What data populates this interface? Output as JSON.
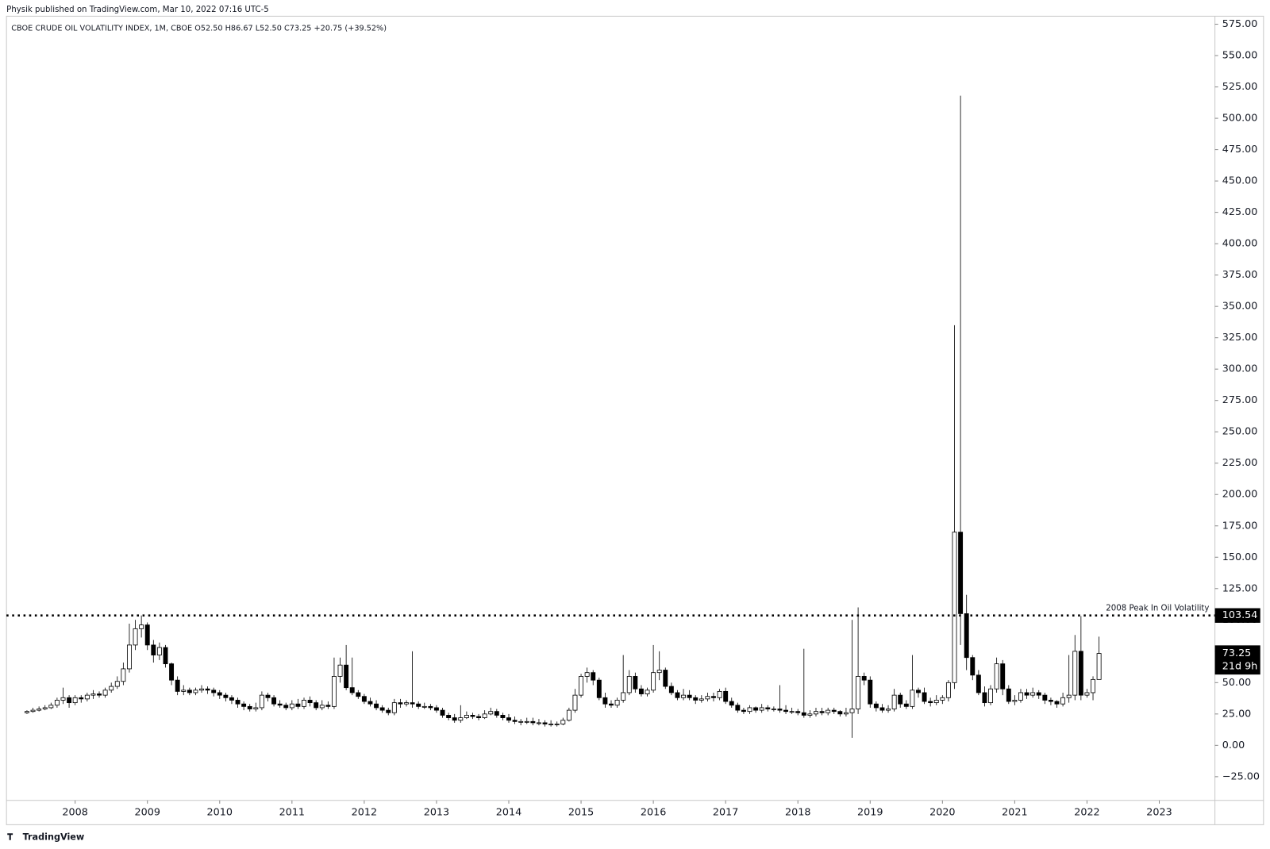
{
  "chart_data": {
    "type": "candlestick",
    "header": "Physik published on TradingView.com, Mar 10, 2022 07:16 UTC-5",
    "title": "CBOE CRUDE OIL VOLATILITY INDEX, 1M, CBOE  O52.50  H86.67  L52.50  C73.25  +20.75 (+39.52%)",
    "branding": "TradingView",
    "countdown": "21d 9h",
    "up_color": "#ffffff",
    "down_color": "#000000",
    "x": [
      "2007-05",
      "2007-06",
      "2007-07",
      "2007-08",
      "2007-09",
      "2007-10",
      "2007-11",
      "2007-12",
      "2008-01",
      "2008-02",
      "2008-03",
      "2008-04",
      "2008-05",
      "2008-06",
      "2008-07",
      "2008-08",
      "2008-09",
      "2008-10",
      "2008-11",
      "2008-12",
      "2009-01",
      "2009-02",
      "2009-03",
      "2009-04",
      "2009-05",
      "2009-06",
      "2009-07",
      "2009-08",
      "2009-09",
      "2009-10",
      "2009-11",
      "2009-12",
      "2010-01",
      "2010-02",
      "2010-03",
      "2010-04",
      "2010-05",
      "2010-06",
      "2010-07",
      "2010-08",
      "2010-09",
      "2010-10",
      "2010-11",
      "2010-12",
      "2011-01",
      "2011-02",
      "2011-03",
      "2011-04",
      "2011-05",
      "2011-06",
      "2011-07",
      "2011-08",
      "2011-09",
      "2011-10",
      "2011-11",
      "2011-12",
      "2012-01",
      "2012-02",
      "2012-03",
      "2012-04",
      "2012-05",
      "2012-06",
      "2012-07",
      "2012-08",
      "2012-09",
      "2012-10",
      "2012-11",
      "2012-12",
      "2013-01",
      "2013-02",
      "2013-03",
      "2013-04",
      "2013-05",
      "2013-06",
      "2013-07",
      "2013-08",
      "2013-09",
      "2013-10",
      "2013-11",
      "2013-12",
      "2014-01",
      "2014-02",
      "2014-03",
      "2014-04",
      "2014-05",
      "2014-06",
      "2014-07",
      "2014-08",
      "2014-09",
      "2014-10",
      "2014-11",
      "2014-12",
      "2015-01",
      "2015-02",
      "2015-03",
      "2015-04",
      "2015-05",
      "2015-06",
      "2015-07",
      "2015-08",
      "2015-09",
      "2015-10",
      "2015-11",
      "2015-12",
      "2016-01",
      "2016-02",
      "2016-03",
      "2016-04",
      "2016-05",
      "2016-06",
      "2016-07",
      "2016-08",
      "2016-09",
      "2016-10",
      "2016-11",
      "2016-12",
      "2017-01",
      "2017-02",
      "2017-03",
      "2017-04",
      "2017-05",
      "2017-06",
      "2017-07",
      "2017-08",
      "2017-09",
      "2017-10",
      "2017-11",
      "2017-12",
      "2018-01",
      "2018-02",
      "2018-03",
      "2018-04",
      "2018-05",
      "2018-06",
      "2018-07",
      "2018-08",
      "2018-09",
      "2018-10",
      "2018-11",
      "2018-12",
      "2019-01",
      "2019-02",
      "2019-03",
      "2019-04",
      "2019-05",
      "2019-06",
      "2019-07",
      "2019-08",
      "2019-09",
      "2019-10",
      "2019-11",
      "2019-12",
      "2020-01",
      "2020-02",
      "2020-03",
      "2020-04",
      "2020-05",
      "2020-06",
      "2020-07",
      "2020-08",
      "2020-09",
      "2020-10",
      "2020-11",
      "2020-12",
      "2021-01",
      "2021-02",
      "2021-03",
      "2021-04",
      "2021-05",
      "2021-06",
      "2021-07",
      "2021-08",
      "2021-09",
      "2021-10",
      "2021-11",
      "2021-12",
      "2022-01",
      "2022-02",
      "2022-03"
    ],
    "open": [
      26,
      27,
      28,
      29,
      30,
      32,
      36,
      38,
      34,
      38,
      37,
      40,
      41,
      40,
      44,
      47,
      51,
      61,
      80,
      93,
      96,
      80,
      72,
      78,
      65,
      52,
      43,
      44,
      42,
      44,
      45,
      44,
      42,
      40,
      38,
      36,
      33,
      31,
      29,
      30,
      40,
      38,
      33,
      32,
      30,
      33,
      31,
      36,
      34,
      30,
      32,
      31,
      55,
      64,
      46,
      42,
      39,
      35,
      33,
      30,
      28,
      26,
      34,
      33,
      34,
      33,
      31,
      31,
      30,
      28,
      24,
      22,
      20,
      22,
      24,
      23,
      22,
      25,
      27,
      24,
      22,
      20,
      19,
      19,
      19,
      18,
      18,
      17,
      17,
      17,
      20,
      28,
      40,
      55,
      58,
      52,
      38,
      33,
      32,
      36,
      42,
      55,
      45,
      41,
      44,
      58,
      60,
      47,
      42,
      38,
      40,
      38,
      36,
      37,
      39,
      38,
      43,
      35,
      32,
      28,
      27,
      30,
      28,
      30,
      29,
      29,
      28,
      27,
      27,
      26,
      24,
      25,
      27,
      26,
      28,
      27,
      25,
      26,
      29,
      55,
      52,
      33,
      30,
      28,
      29,
      40,
      33,
      31,
      44,
      42,
      35,
      34,
      36,
      38,
      50,
      170,
      105,
      70,
      56,
      42,
      34,
      45,
      65,
      45,
      35,
      36,
      42,
      40,
      42,
      40,
      36,
      35,
      33,
      38,
      40,
      75,
      40,
      42,
      52.5
    ],
    "high": [
      28,
      30,
      31,
      32,
      34,
      38,
      46,
      40,
      40,
      40,
      42,
      44,
      43,
      46,
      50,
      55,
      66,
      97,
      100,
      103.54,
      98,
      84,
      82,
      80,
      66,
      55,
      48,
      46,
      46,
      48,
      47,
      46,
      44,
      42,
      40,
      38,
      35,
      33,
      34,
      43,
      42,
      40,
      36,
      34,
      36,
      37,
      38,
      39,
      36,
      36,
      35,
      70,
      70,
      80,
      70,
      44,
      41,
      38,
      36,
      32,
      30,
      37,
      37,
      36,
      75,
      35,
      34,
      33,
      32,
      30,
      26,
      25,
      32,
      27,
      26,
      25,
      28,
      30,
      29,
      26,
      25,
      23,
      21,
      22,
      22,
      21,
      20,
      20,
      19,
      22,
      30,
      45,
      57,
      62,
      60,
      54,
      42,
      36,
      38,
      72,
      60,
      58,
      48,
      46,
      80,
      75,
      62,
      50,
      44,
      45,
      44,
      40,
      40,
      42,
      42,
      45,
      46,
      38,
      34,
      30,
      32,
      31,
      33,
      32,
      31,
      48,
      32,
      30,
      29,
      77,
      28,
      30,
      30,
      30,
      30,
      28,
      30,
      100,
      110,
      58,
      55,
      35,
      33,
      32,
      45,
      42,
      36,
      72,
      46,
      46,
      38,
      40,
      40,
      52,
      335,
      518,
      120,
      72,
      60,
      47,
      48,
      70,
      68,
      48,
      40,
      45,
      45,
      46,
      44,
      42,
      38,
      36,
      42,
      72,
      88,
      103,
      45,
      55,
      86.67
    ],
    "low": [
      25,
      26,
      27,
      28,
      29,
      30,
      33,
      30,
      32,
      34,
      35,
      37,
      38,
      38,
      42,
      45,
      48,
      58,
      76,
      86,
      76,
      66,
      68,
      62,
      48,
      40,
      40,
      40,
      40,
      42,
      41,
      39,
      37,
      35,
      33,
      30,
      28,
      27,
      27,
      28,
      35,
      31,
      30,
      28,
      28,
      29,
      29,
      31,
      28,
      28,
      29,
      29,
      50,
      44,
      40,
      37,
      33,
      31,
      28,
      26,
      24,
      24,
      30,
      31,
      30,
      29,
      29,
      28,
      26,
      22,
      20,
      18,
      18,
      21,
      21,
      20,
      21,
      24,
      22,
      20,
      18,
      17,
      16,
      17,
      16,
      16,
      15,
      15,
      15,
      16,
      19,
      26,
      38,
      50,
      48,
      36,
      30,
      30,
      30,
      34,
      40,
      42,
      39,
      39,
      42,
      52,
      45,
      40,
      36,
      36,
      36,
      33,
      34,
      35,
      35,
      36,
      33,
      30,
      26,
      25,
      25,
      26,
      26,
      27,
      27,
      26,
      25,
      25,
      24,
      22,
      22,
      23,
      24,
      24,
      25,
      23,
      23,
      6,
      25,
      48,
      30,
      27,
      26,
      26,
      27,
      30,
      29,
      29,
      38,
      33,
      31,
      32,
      33,
      35,
      45,
      80,
      60,
      52,
      40,
      31,
      32,
      42,
      40,
      33,
      32,
      34,
      37,
      38,
      37,
      33,
      32,
      30,
      31,
      34,
      36,
      36,
      38,
      36,
      52.5
    ],
    "close": [
      27,
      28,
      29,
      30,
      32,
      36,
      38,
      34,
      38,
      37,
      40,
      41,
      40,
      44,
      47,
      51,
      61,
      80,
      93,
      96,
      80,
      72,
      78,
      65,
      52,
      43,
      44,
      42,
      44,
      45,
      44,
      42,
      40,
      38,
      36,
      33,
      31,
      29,
      30,
      40,
      38,
      33,
      32,
      30,
      33,
      31,
      36,
      34,
      30,
      32,
      31,
      55,
      64,
      46,
      42,
      39,
      35,
      33,
      30,
      28,
      26,
      34,
      33,
      34,
      33,
      31,
      31,
      30,
      28,
      24,
      22,
      20,
      22,
      24,
      23,
      22,
      25,
      27,
      24,
      22,
      20,
      19,
      19,
      19,
      18,
      18,
      17,
      17,
      17,
      20,
      28,
      40,
      55,
      58,
      52,
      38,
      33,
      32,
      36,
      42,
      55,
      45,
      41,
      44,
      58,
      60,
      47,
      42,
      38,
      40,
      38,
      36,
      37,
      39,
      38,
      43,
      35,
      32,
      28,
      27,
      30,
      28,
      30,
      29,
      29,
      28,
      27,
      27,
      26,
      24,
      25,
      27,
      26,
      28,
      27,
      25,
      26,
      29,
      55,
      52,
      33,
      30,
      28,
      29,
      40,
      33,
      31,
      44,
      42,
      35,
      34,
      36,
      38,
      50,
      170,
      105,
      70,
      56,
      42,
      34,
      45,
      65,
      45,
      35,
      36,
      42,
      40,
      42,
      40,
      36,
      35,
      33,
      38,
      40,
      75,
      40,
      42,
      52.5,
      73.25
    ],
    "xlim": [
      2007.05,
      2023.77
    ],
    "xticks": [
      2008,
      2009,
      2010,
      2011,
      2012,
      2013,
      2014,
      2015,
      2016,
      2017,
      2018,
      2019,
      2020,
      2021,
      2022,
      2023
    ],
    "ylim": [
      -43.9,
      581.4
    ],
    "yticks": [
      {
        "value": -25,
        "label": "−25.00"
      },
      {
        "value": 0,
        "label": "0.00"
      },
      {
        "value": 25,
        "label": "25.00"
      },
      {
        "value": 50,
        "label": "50.00"
      },
      {
        "value": 75,
        "label": "75.00"
      },
      {
        "value": 100,
        "label": "100.00"
      },
      {
        "value": 125,
        "label": "125.00"
      },
      {
        "value": 150,
        "label": "150.00"
      },
      {
        "value": 175,
        "label": "175.00"
      },
      {
        "value": 200,
        "label": "200.00"
      },
      {
        "value": 225,
        "label": "225.00"
      },
      {
        "value": 250,
        "label": "250.00"
      },
      {
        "value": 275,
        "label": "275.00"
      },
      {
        "value": 300,
        "label": "300.00"
      },
      {
        "value": 325,
        "label": "325.00"
      },
      {
        "value": 350,
        "label": "350.00"
      },
      {
        "value": 375,
        "label": "375.00"
      },
      {
        "value": 400,
        "label": "400.00"
      },
      {
        "value": 425,
        "label": "425.00"
      },
      {
        "value": 450,
        "label": "450.00"
      },
      {
        "value": 475,
        "label": "475.00"
      },
      {
        "value": 500,
        "label": "500.00"
      },
      {
        "value": 525,
        "label": "525.00"
      },
      {
        "value": 550,
        "label": "550.00"
      },
      {
        "value": 575,
        "label": "575.00"
      }
    ],
    "hline": {
      "value": 103.54,
      "text": "2008 Peak In Oil Volatility"
    }
  }
}
